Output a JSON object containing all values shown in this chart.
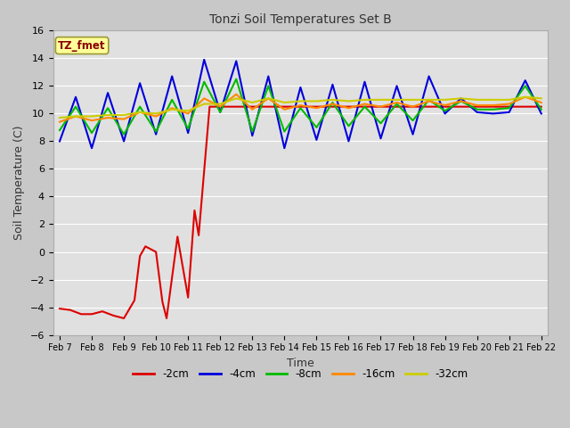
{
  "title": "Tonzi Soil Temperatures Set B",
  "xlabel": "Time",
  "ylabel": "Soil Temperature (C)",
  "ylim": [
    -6,
    16
  ],
  "yticks": [
    -6,
    -4,
    -2,
    0,
    2,
    4,
    6,
    8,
    10,
    12,
    14,
    16
  ],
  "fig_facecolor": "#c8c8c8",
  "plot_facecolor": "#e0e0e0",
  "annotation_text": "TZ_fmet",
  "annotation_color": "#8b0000",
  "annotation_bg": "#ffff99",
  "annotation_edge": "#999933",
  "x_labels": [
    "Feb 7",
    "Feb 8",
    "Feb 9",
    "Feb 10",
    "Feb 11",
    "Feb 12",
    "Feb 13",
    "Feb 14",
    "Feb 15",
    "Feb 16",
    "Feb 17",
    "Feb 18",
    "Feb 19",
    "Feb 20",
    "Feb 21",
    "Feb 22"
  ],
  "grid_color": "#ffffff",
  "series": [
    {
      "label": "-2cm",
      "color": "#dd0000",
      "lw": 1.5,
      "x": [
        0,
        0.33,
        0.67,
        1.0,
        1.33,
        1.67,
        2.0,
        2.33,
        2.5,
        2.67,
        3.0,
        3.2,
        3.33,
        3.67,
        4.0,
        4.2,
        4.33,
        4.67,
        5.0,
        5.2,
        5.33,
        5.67,
        6.0,
        6.2,
        6.33,
        6.5,
        6.67,
        15
      ],
      "y": [
        -4.1,
        -4.2,
        -4.5,
        -4.5,
        -4.3,
        -4.6,
        -4.8,
        -3.5,
        -0.3,
        0.4,
        0.0,
        -3.6,
        -4.8,
        1.1,
        -3.3,
        3.0,
        1.2,
        10.5,
        10.5,
        10.5,
        10.5,
        10.5,
        10.5,
        10.5,
        10.5,
        10.5,
        10.5,
        10.5
      ]
    },
    {
      "label": "-4cm",
      "color": "#0000dd",
      "lw": 1.5,
      "x": [
        0,
        0.5,
        1.0,
        1.5,
        2.0,
        2.5,
        3.0,
        3.5,
        4.0,
        4.5,
        5.0,
        5.5,
        6.0,
        6.5,
        7.0,
        7.5,
        8.0,
        8.5,
        9.0,
        9.5,
        10.0,
        10.5,
        11.0,
        11.5,
        12.0,
        12.5,
        13.0,
        13.5,
        14.0,
        14.5,
        15.0
      ],
      "y": [
        8.0,
        11.2,
        7.5,
        11.5,
        8.0,
        12.2,
        8.5,
        12.7,
        8.6,
        13.9,
        10.1,
        13.8,
        8.4,
        12.7,
        7.5,
        11.9,
        8.1,
        12.1,
        8.0,
        12.3,
        8.2,
        12.0,
        8.5,
        12.7,
        10.0,
        11.1,
        10.1,
        10.0,
        10.1,
        12.4,
        10.0
      ]
    },
    {
      "label": "-8cm",
      "color": "#00bb00",
      "lw": 1.5,
      "x": [
        0,
        0.5,
        1.0,
        1.5,
        2.0,
        2.5,
        3.0,
        3.5,
        4.0,
        4.5,
        5.0,
        5.5,
        6.0,
        6.5,
        7.0,
        7.5,
        8.0,
        8.5,
        9.0,
        9.5,
        10.0,
        10.5,
        11.0,
        11.5,
        12.0,
        12.5,
        13.0,
        13.5,
        14.0,
        14.5,
        15.0
      ],
      "y": [
        8.8,
        10.5,
        8.6,
        10.4,
        8.5,
        10.5,
        8.7,
        11.0,
        8.9,
        12.3,
        10.1,
        12.5,
        8.7,
        12.0,
        8.7,
        10.4,
        9.0,
        10.8,
        9.1,
        10.5,
        9.3,
        10.7,
        9.5,
        11.0,
        10.2,
        10.9,
        10.3,
        10.3,
        10.4,
        12.0,
        10.3
      ]
    },
    {
      "label": "-16cm",
      "color": "#ff8800",
      "lw": 1.5,
      "x": [
        0,
        0.5,
        1.0,
        1.5,
        2.0,
        2.5,
        3.0,
        3.5,
        4.0,
        4.5,
        5.0,
        5.5,
        6.0,
        6.5,
        7.0,
        7.5,
        8.0,
        8.5,
        9.0,
        9.5,
        10.0,
        10.5,
        11.0,
        11.5,
        12.0,
        12.5,
        13.0,
        13.5,
        14.0,
        14.5,
        15.0
      ],
      "y": [
        9.4,
        9.8,
        9.5,
        9.7,
        9.6,
        10.1,
        9.8,
        10.4,
        10.0,
        11.1,
        10.5,
        11.4,
        10.3,
        11.1,
        10.3,
        10.6,
        10.4,
        10.7,
        10.4,
        10.7,
        10.5,
        10.8,
        10.5,
        10.9,
        10.6,
        10.9,
        10.6,
        10.6,
        10.7,
        11.2,
        10.8
      ]
    },
    {
      "label": "-32cm",
      "color": "#cccc00",
      "lw": 1.5,
      "x": [
        0,
        0.5,
        1.0,
        1.5,
        2.0,
        2.5,
        3.0,
        3.5,
        4.0,
        4.5,
        5.0,
        5.5,
        6.0,
        6.5,
        7.0,
        7.5,
        8.0,
        8.5,
        9.0,
        9.5,
        10.0,
        10.5,
        11.0,
        11.5,
        12.0,
        12.5,
        13.0,
        13.5,
        14.0,
        14.5,
        15.0
      ],
      "y": [
        9.7,
        9.8,
        9.8,
        9.9,
        9.9,
        10.1,
        10.0,
        10.3,
        10.2,
        10.7,
        10.7,
        11.1,
        10.8,
        11.1,
        10.8,
        10.9,
        10.9,
        11.0,
        10.9,
        11.0,
        11.0,
        11.0,
        11.0,
        11.0,
        11.0,
        11.1,
        11.0,
        11.0,
        11.0,
        11.2,
        11.1
      ]
    }
  ]
}
